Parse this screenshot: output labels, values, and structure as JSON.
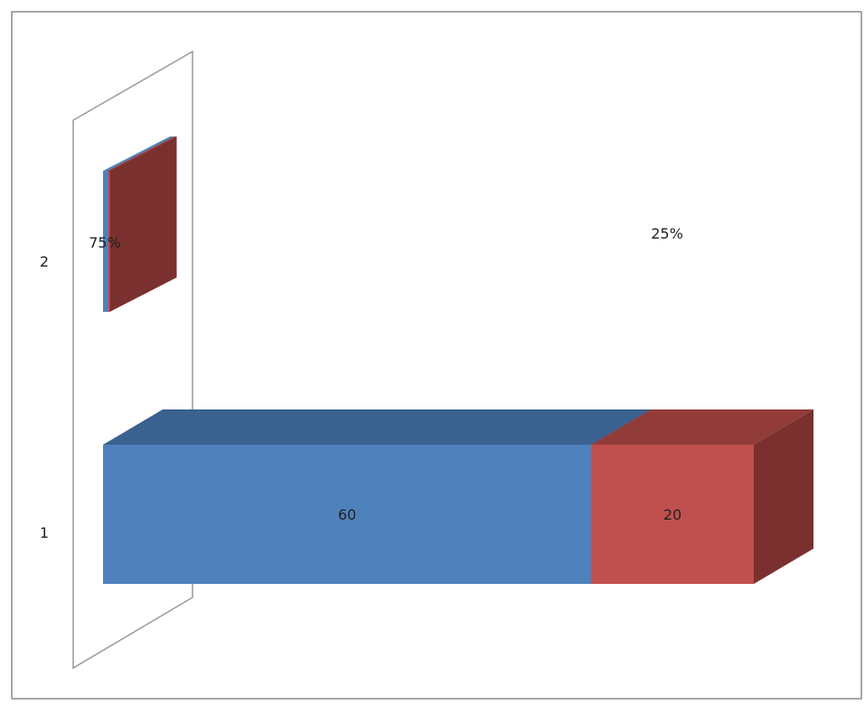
{
  "chart_data": {
    "type": "bar",
    "orientation": "horizontal",
    "stacked": true,
    "three_d": true,
    "categories": [
      "1",
      "2"
    ],
    "series": [
      {
        "values": [
          60,
          0.75
        ],
        "data_labels": [
          "60",
          "75%"
        ]
      },
      {
        "values": [
          20,
          0.25
        ],
        "data_labels": [
          "20",
          "25%"
        ]
      }
    ],
    "title": "",
    "xlabel": "",
    "ylabel": "",
    "grid": false,
    "legend": "none"
  },
  "colors": {
    "series_front": [
      "#4f81bd",
      "#c0504d"
    ],
    "series_top": [
      "#3a6190",
      "#923c39"
    ],
    "series_side": [
      "#2d4c73",
      "#7a302e"
    ],
    "chart_border": "#8c8c8c",
    "axis_wall": "#999999"
  }
}
